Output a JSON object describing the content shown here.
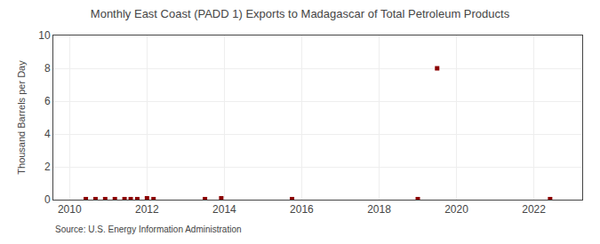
{
  "chart_data": {
    "type": "scatter",
    "title": "Monthly East Coast (PADD 1) Exports to Madagascar of Total Petroleum Products",
    "ylabel": "Thousand Barrels per Day",
    "annotations": [
      "Source: U.S. Energy Information Administration"
    ],
    "x": [
      2010.42,
      2010.67,
      2010.92,
      2011.17,
      2011.42,
      2011.58,
      2011.75,
      2012.0,
      2012.17,
      2013.5,
      2013.92,
      2015.75,
      2019.0,
      2019.5,
      2022.42
    ],
    "values": [
      0.03,
      0.03,
      0.03,
      0.03,
      0.03,
      0.03,
      0.03,
      0.08,
      0.03,
      0.03,
      0.08,
      0.03,
      0.03,
      8.0,
      0.03
    ],
    "color": "#8b0000",
    "marker": "square",
    "xlim": [
      2009.58,
      2023.25
    ],
    "ylim": [
      0,
      10
    ],
    "xticks": [
      2010,
      2012,
      2014,
      2016,
      2018,
      2020,
      2022
    ],
    "yticks": [
      0,
      2,
      4,
      6,
      8,
      10
    ],
    "grid": true
  }
}
